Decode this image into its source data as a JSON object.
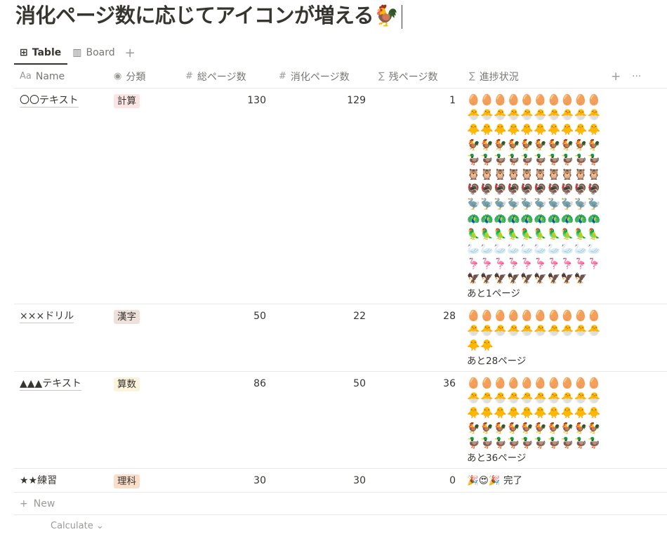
{
  "page": {
    "title": "消化ページ数に応じてアイコンが増える🐓"
  },
  "views": [
    {
      "icon": "⊞",
      "label": "Table",
      "active": true
    },
    {
      "icon": "▥",
      "label": "Board",
      "active": false
    }
  ],
  "add_view_label": "+",
  "columns": [
    {
      "icon": "Aa",
      "label": "Name"
    },
    {
      "icon": "◉",
      "label": "分類"
    },
    {
      "icon": "#",
      "label": "総ページ数"
    },
    {
      "icon": "#",
      "label": "消化ページ数"
    },
    {
      "icon": "∑",
      "label": "残ページ数"
    },
    {
      "icon": "∑",
      "label": "進捗状況"
    }
  ],
  "column_actions": {
    "add": "+",
    "more": "···"
  },
  "rows": [
    {
      "name": "〇〇テキスト",
      "category": "計算",
      "category_color": "#fbe4e4",
      "total": "130",
      "done": "129",
      "remaining": "1",
      "progress_icons": [
        "🥚🥚🥚🥚🥚🥚🥚🥚🥚🥚",
        "🐣🐣🐣🐣🐣🐣🐣🐣🐣🐣",
        "🐥🐥🐥🐥🐥🐥🐥🐥🐥🐥",
        "🐓🐓🐓🐓🐓🐓🐓🐓🐓🐓",
        "🦆🦆🦆🦆🦆🦆🦆🦆🦆🦆",
        "🦉🦉🦉🦉🦉🦉🦉🦉🦉🦉",
        "🦃🦃🦃🦃🦃🦃🦃🦃🦃🦃",
        "🦤🦤🦤🦤🦤🦤🦤🦤🦤🦤",
        "🦚🦚🦚🦚🦚🦚🦚🦚🦚🦚",
        "🦜🦜🦜🦜🦜🦜🦜🦜🦜🦜",
        "🦢🦢🦢🦢🦢🦢🦢🦢🦢🦢",
        "🦩🦩🦩🦩🦩🦩🦩🦩🦩🦩",
        "🦅🦅🦅🦅🦅🦅🦅🦅🦅"
      ],
      "progress_text": "あと1ページ"
    },
    {
      "name": "×××ドリル",
      "category": "漢字",
      "category_color": "#eee0da",
      "total": "50",
      "done": "22",
      "remaining": "28",
      "progress_icons": [
        "🥚🥚🥚🥚🥚🥚🥚🥚🥚🥚",
        "🐣🐣🐣🐣🐣🐣🐣🐣🐣🐣",
        "🐥🐥"
      ],
      "progress_text": "あと28ページ"
    },
    {
      "name": "▲▲▲テキスト",
      "category": "算数",
      "category_color": "#fbf3db",
      "total": "86",
      "done": "50",
      "remaining": "36",
      "progress_icons": [
        "🥚🥚🥚🥚🥚🥚🥚🥚🥚🥚",
        "🐣🐣🐣🐣🐣🐣🐣🐣🐣🐣",
        "🐥🐥🐥🐥🐥🐥🐥🐥🐥🐥",
        "🐓🐓🐓🐓🐓🐓🐓🐓🐓🐓",
        "🦆🦆🦆🦆🦆🦆🦆🦆🦆🦆"
      ],
      "progress_text": "あと36ページ"
    },
    {
      "name": "★★練習",
      "category": "理科",
      "category_color": "#fadec9",
      "total": "30",
      "done": "30",
      "remaining": "0",
      "progress_icons": [],
      "progress_text": "🎉😍🎉 完了"
    }
  ],
  "footer": {
    "new_label": "New",
    "calculate_label": "Calculate"
  }
}
